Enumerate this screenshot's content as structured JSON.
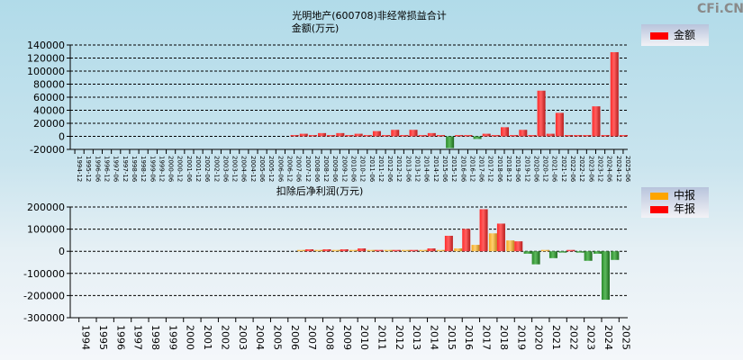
{
  "watermark": "CFi.CN",
  "colors": {
    "positive": "#ff2020",
    "negative": "#2e8b2e",
    "interim": "#f0a020"
  },
  "chart_data": [
    {
      "type": "bar",
      "title": "光明地产(600708)非经常损益合计",
      "ylabel": "金额(万元)",
      "ylim": [
        -20000,
        140000
      ],
      "yticks": [
        140000,
        120000,
        100000,
        80000,
        60000,
        40000,
        20000,
        0,
        -20000
      ],
      "grid": true,
      "legend": {
        "placement": "top-right",
        "entries": [
          "金额"
        ]
      },
      "categories": [
        "1994-12",
        "1995-12",
        "1996-06",
        "1996-12",
        "1997-06",
        "1997-12",
        "1998-06",
        "1998-12",
        "1999-06",
        "1999-12",
        "2000-06",
        "2000-12",
        "2001-06",
        "2001-12",
        "2002-06",
        "2002-12",
        "2003-06",
        "2003-12",
        "2004-06",
        "2004-12",
        "2005-06",
        "2005-12",
        "2006-06",
        "2006-12",
        "2007-06",
        "2007-12",
        "2008-06",
        "2008-12",
        "2009-06",
        "2009-12",
        "2010-06",
        "2010-12",
        "2011-06",
        "2011-12",
        "2012-06",
        "2012-12",
        "2013-06",
        "2013-12",
        "2014-06",
        "2014-12",
        "2015-06",
        "2015-12",
        "2016-06",
        "2016-12",
        "2017-06",
        "2017-12",
        "2018-06",
        "2018-12",
        "2019-06",
        "2019-12",
        "2020-06",
        "2020-12",
        "2021-06",
        "2021-12",
        "2022-06",
        "2022-12",
        "2023-06",
        "2023-12",
        "2024-06",
        "2024-12",
        "2025-06"
      ],
      "series": [
        {
          "name": "金额",
          "values": [
            null,
            null,
            null,
            null,
            null,
            null,
            null,
            null,
            null,
            null,
            null,
            null,
            null,
            null,
            null,
            null,
            null,
            null,
            null,
            null,
            null,
            null,
            null,
            null,
            1000,
            4000,
            1000,
            5000,
            1000,
            5000,
            1000,
            4000,
            1000,
            8000,
            1000,
            10000,
            2000,
            10000,
            1000,
            5000,
            1000,
            -18000,
            1000,
            1000,
            -4000,
            4000,
            1000,
            14000,
            1000,
            10000,
            2000,
            70000,
            4000,
            36000,
            1000,
            2000,
            2000,
            46000,
            0,
            129000,
            1000
          ]
        }
      ]
    },
    {
      "type": "bar",
      "title": "扣除后净利润(万元)",
      "ylim": [
        -300000,
        200000
      ],
      "yticks": [
        200000,
        100000,
        0,
        -100000,
        -200000,
        -300000
      ],
      "grid": true,
      "legend": {
        "placement": "top-right",
        "entries": [
          "中报",
          "年报"
        ]
      },
      "categories": [
        "1994",
        "1995",
        "1996",
        "1997",
        "1998",
        "1999",
        "2000",
        "2001",
        "2002",
        "2003",
        "2004",
        "2005",
        "2006",
        "2007",
        "2008",
        "2009",
        "2010",
        "2011",
        "2012",
        "2013",
        "2014",
        "2015",
        "2016",
        "2017",
        "2018",
        "2019",
        "2020",
        "2021",
        "2022",
        "2023",
        "2024",
        "2025"
      ],
      "series": [
        {
          "name": "中报",
          "values": [
            null,
            null,
            null,
            null,
            null,
            null,
            null,
            null,
            null,
            null,
            null,
            null,
            null,
            2000,
            2000,
            2000,
            2000,
            2000,
            2000,
            2000,
            2000,
            3000,
            13000,
            29000,
            81000,
            49000,
            -11000,
            3000,
            -3000,
            -1000,
            -11000,
            -39000
          ]
        },
        {
          "name": "年报",
          "values": [
            null,
            null,
            null,
            null,
            null,
            null,
            null,
            null,
            null,
            null,
            null,
            null,
            null,
            9000,
            9000,
            9000,
            13000,
            4000,
            4000,
            4000,
            13000,
            70000,
            101000,
            190000,
            125000,
            45000,
            -59000,
            -31000,
            5000,
            -43000,
            -219000,
            null
          ]
        }
      ]
    }
  ]
}
